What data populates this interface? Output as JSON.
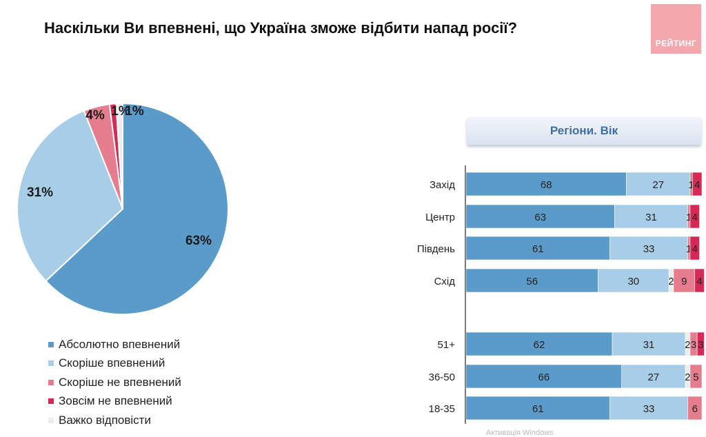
{
  "title": "Наскільки Ви впевнені, що Україна зможе відбити напад росії?",
  "logo_text": "РЕЙТИНГ",
  "panel_header": "Регіони. Вік",
  "watermark": "Активація Windows",
  "colors": {
    "absolutely": "#5b9bc9",
    "rather": "#a8cde6",
    "rather_not": "#e67d8f",
    "not_at_all": "#d42a55",
    "hard_to_say": "#ededed",
    "logo": "#f4a7ad",
    "header_text": "#3d6fa3"
  },
  "chart_data": [
    {
      "type": "pie",
      "title": "",
      "slices": [
        {
          "name": "Абсолютно впевнений",
          "value": 63,
          "label": "63%",
          "color": "#5b9bc9"
        },
        {
          "name": "Скоріше впевнений",
          "value": 31,
          "label": "31%",
          "color": "#a8cde6"
        },
        {
          "name": "Скоріше не впевнений",
          "value": 4,
          "label": "4%",
          "color": "#e67d8f"
        },
        {
          "name": "Зовсім не впевнений",
          "value": 1,
          "label": "1%",
          "color": "#d42a55"
        },
        {
          "name": "Важко відповісти",
          "value": 1,
          "label": "1%",
          "color": "#ededed"
        }
      ],
      "legend": {
        "position": "bottom-left",
        "items": [
          "Абсолютно впевнений",
          "Скоріше впевнений",
          "Скоріше не впевнений",
          "Зовсім не впевнений",
          "Важко відповісти"
        ]
      }
    },
    {
      "type": "bar",
      "orientation": "horizontal",
      "stacked": true,
      "title": "Регіони. Вік",
      "xlim": [
        0,
        100
      ],
      "categories": [
        "Захід",
        "Центр",
        "Південь",
        "Схід",
        "51+",
        "36-50",
        "18-35"
      ],
      "groups": [
        [
          "Захід",
          "Центр",
          "Південь",
          "Схід"
        ],
        [
          "51+",
          "36-50",
          "18-35"
        ]
      ],
      "series": [
        {
          "name": "Абсолютно впевнений",
          "values": [
            68,
            63,
            61,
            56,
            62,
            66,
            61
          ],
          "color": "#5b9bc9"
        },
        {
          "name": "Скоріше впевнений",
          "values": [
            27,
            31,
            33,
            30,
            31,
            27,
            33
          ],
          "color": "#a8cde6"
        },
        {
          "name": "Важко відповісти",
          "values": [
            0,
            0,
            0,
            2,
            2,
            2,
            0
          ],
          "color": "#ededed"
        },
        {
          "name": "Скоріше не впевнений",
          "values": [
            1,
            1,
            1,
            9,
            3,
            5,
            6
          ],
          "color": "#e67d8f"
        },
        {
          "name": "Зовсім не впевнений",
          "values": [
            4,
            4,
            4,
            4,
            3,
            0,
            0
          ],
          "color": "#d42a55"
        }
      ],
      "data_labels": [
        [
          "68",
          "27",
          "",
          "1",
          "4"
        ],
        [
          "63",
          "31",
          "",
          "1",
          "4"
        ],
        [
          "61",
          "33",
          "",
          "1",
          "4"
        ],
        [
          "56",
          "30",
          "2",
          "9",
          "4"
        ],
        [
          "62",
          "31",
          "2",
          "3",
          "3"
        ],
        [
          "66",
          "27",
          "2",
          "5",
          ""
        ],
        [
          "61",
          "33",
          "",
          "6",
          ""
        ]
      ]
    }
  ]
}
